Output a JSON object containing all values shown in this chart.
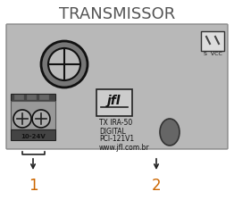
{
  "title": "TRANSMISSOR",
  "title_fontsize": 13,
  "title_color": "#555555",
  "bg_color": "#b8b8b8",
  "box_edge": "#888888",
  "text_color": "#1a1a1a",
  "label1": "1",
  "label2": "2",
  "label_color": "#cc6600",
  "label_10_24v": "10-24V",
  "label_svcc": "S  VCC",
  "label_tx": "TX IRA-50",
  "label_digital": "DIGITAL",
  "label_pci": "PCI-121V1",
  "label_www": "www.jfl.com.br",
  "fig_w": 2.62,
  "fig_h": 2.33,
  "dpi": 100
}
